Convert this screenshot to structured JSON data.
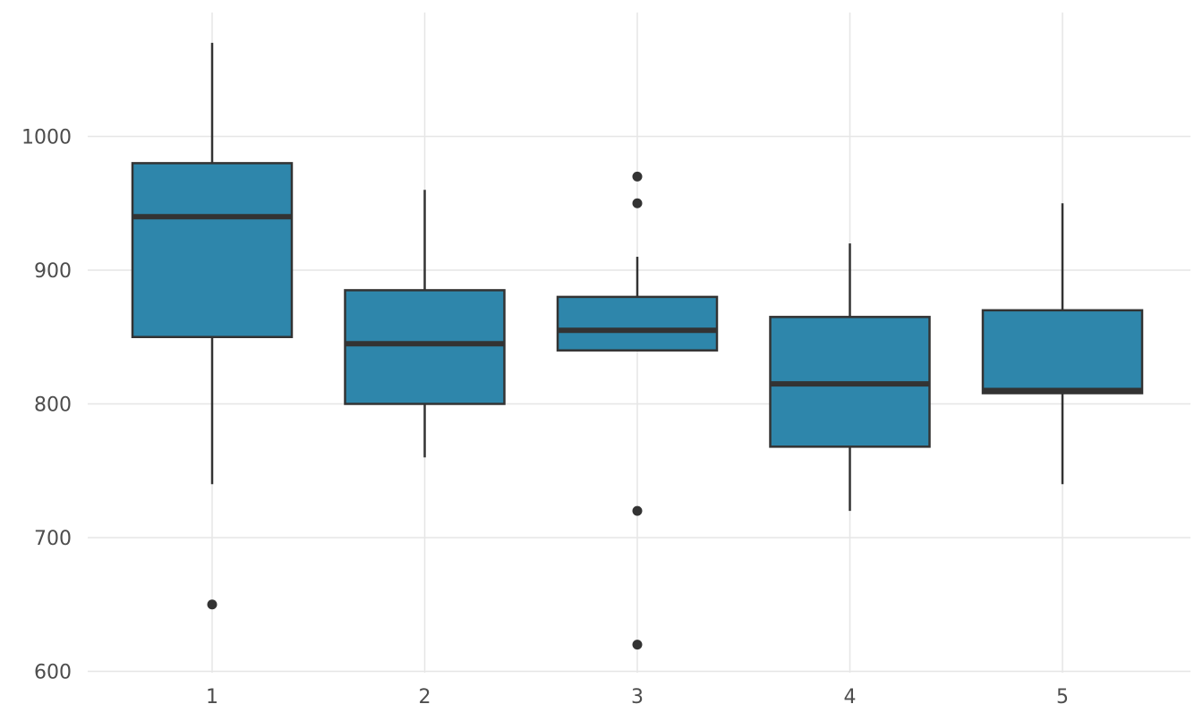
{
  "chart_data": {
    "type": "boxplot",
    "title": "",
    "xlabel": "",
    "ylabel": "",
    "categories": [
      "1",
      "2",
      "3",
      "4",
      "5"
    ],
    "ylim": [
      600,
      1090
    ],
    "yticks": [
      600,
      700,
      800,
      900,
      1000
    ],
    "grid": true,
    "legend": "none",
    "box_color": "#2e86ab",
    "line_color": "#333333",
    "grid_color": "#e6e6e6",
    "boxes": [
      {
        "category": "1",
        "whisker_low": 740,
        "q1": 850,
        "median": 940,
        "q3": 980,
        "whisker_high": 1070,
        "outliers": [
          650
        ]
      },
      {
        "category": "2",
        "whisker_low": 760,
        "q1": 800,
        "median": 845,
        "q3": 885,
        "whisker_high": 960,
        "outliers": []
      },
      {
        "category": "3",
        "whisker_low": 840,
        "q1": 840,
        "median": 855,
        "q3": 880,
        "whisker_high": 910,
        "outliers": [
          970,
          950,
          720,
          620
        ]
      },
      {
        "category": "4",
        "whisker_low": 720,
        "q1": 768,
        "median": 815,
        "q3": 865,
        "whisker_high": 920,
        "outliers": []
      },
      {
        "category": "5",
        "whisker_low": 740,
        "q1": 808,
        "median": 810,
        "q3": 870,
        "whisker_high": 950,
        "outliers": []
      }
    ]
  }
}
